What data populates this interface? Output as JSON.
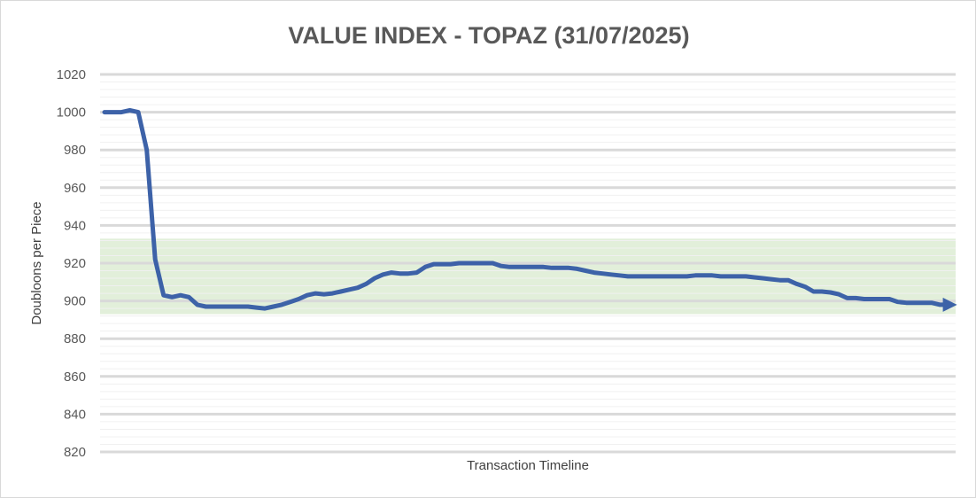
{
  "chart_data": {
    "type": "line",
    "title": "VALUE INDEX - TOPAZ (31/07/2025)",
    "xlabel": "Transaction Timeline",
    "ylabel": "Doubloons per Piece",
    "ylim": [
      820,
      1020
    ],
    "yticks": [
      1020,
      1000,
      980,
      960,
      940,
      920,
      900,
      880,
      860,
      840,
      820
    ],
    "grid": true,
    "band": {
      "from": 893,
      "to": 933,
      "color": "#e2efda"
    },
    "line_color": "#3d62a8",
    "x": [
      0,
      1,
      2,
      3,
      4,
      5,
      6,
      7,
      8,
      9,
      10,
      11,
      12,
      13,
      14,
      15,
      16,
      17,
      18,
      19,
      20,
      21,
      22,
      23,
      24,
      25,
      26,
      27,
      28,
      29,
      30,
      31,
      32,
      33,
      34,
      35,
      36,
      37,
      38,
      39,
      40,
      41,
      42,
      43,
      44,
      45,
      46,
      47,
      48,
      49,
      50,
      51,
      52,
      53,
      54,
      55,
      56,
      57,
      58,
      59,
      60,
      61,
      62,
      63,
      64,
      65,
      66,
      67,
      68,
      69,
      70,
      71,
      72,
      73,
      74,
      75,
      76,
      77,
      78,
      79,
      80,
      81,
      82,
      83,
      84,
      85,
      86,
      87,
      88,
      89,
      90,
      91,
      92,
      93,
      94,
      95,
      96,
      97,
      98,
      99,
      100
    ],
    "series": [
      {
        "values": [
          1000,
          1000,
          1000,
          1001,
          1000,
          980,
          922,
          903,
          902,
          903,
          902,
          898,
          897,
          897,
          897,
          897,
          897,
          897,
          896.5,
          896,
          897,
          898,
          899.5,
          901,
          903,
          904,
          903.5,
          904,
          905,
          906,
          907,
          909,
          912,
          914,
          915,
          914.5,
          914.5,
          915,
          918,
          919.5,
          919.5,
          919.5,
          920,
          920,
          920,
          920,
          920,
          918.5,
          918,
          918,
          918,
          918,
          918,
          917.5,
          917.5,
          917.5,
          917,
          916,
          915,
          914.5,
          914,
          913.5,
          913,
          913,
          913,
          913,
          913,
          913,
          913,
          913,
          913.5,
          913.5,
          913.5,
          913,
          913,
          913,
          913,
          912.5,
          912,
          911.5,
          911,
          911,
          909,
          907.5,
          905,
          905,
          904.5,
          903.5,
          901.5,
          901.5,
          901,
          901,
          901,
          901,
          899.5,
          899,
          899,
          899,
          899,
          898,
          898
        ],
        "color": "#3d62a8"
      }
    ]
  }
}
